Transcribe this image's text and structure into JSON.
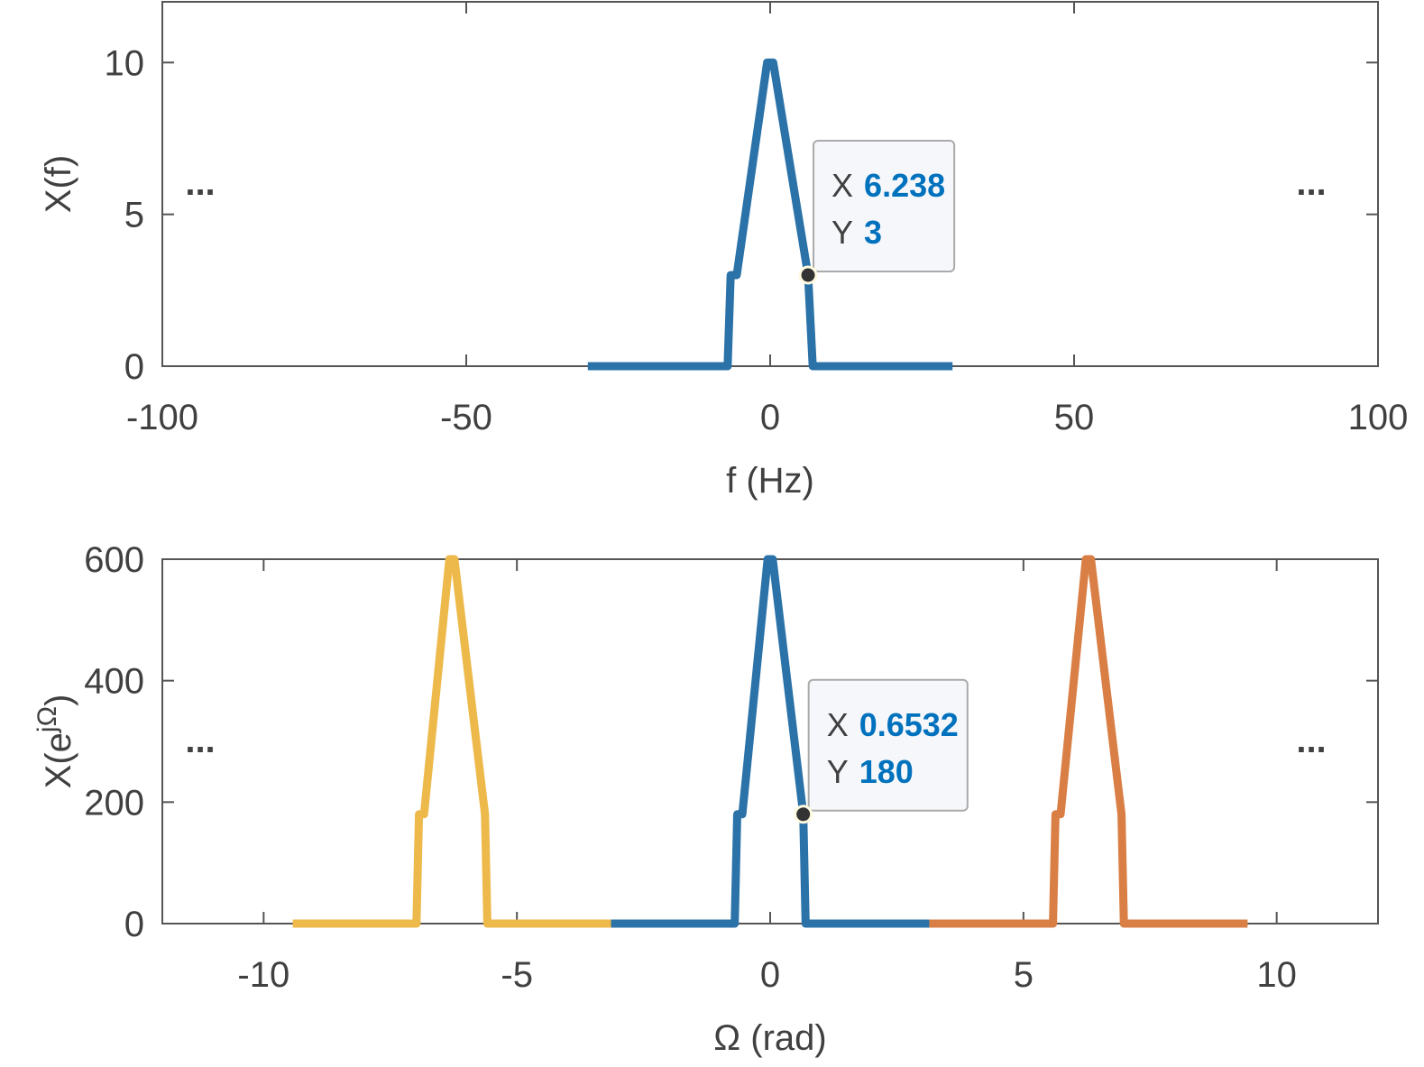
{
  "chart_data": [
    {
      "type": "line",
      "xlabel": "f (Hz)",
      "ylabel": "X(f)",
      "xlim": [
        -100,
        100
      ],
      "ylim": [
        0,
        12
      ],
      "xticks": [
        -100,
        -50,
        0,
        50,
        100
      ],
      "yticks": [
        0,
        5,
        10
      ],
      "series": [
        {
          "color": "#2a72a8",
          "x": [
            -30,
            -7,
            -6.5,
            -5.5,
            -0.5,
            0.5,
            6.238,
            7,
            30
          ],
          "values": [
            0,
            0,
            3,
            3,
            10,
            10,
            3,
            0,
            0
          ]
        }
      ],
      "datatip": {
        "x_label": "X",
        "x": 6.238,
        "y_label": "Y",
        "y": 3
      },
      "annotations": [
        "...",
        "..."
      ]
    },
    {
      "type": "line",
      "xlabel": "Ω (rad)",
      "ylabel_parts": [
        "X(e",
        "jΩ",
        ")"
      ],
      "xlim": [
        -12,
        12
      ],
      "ylim": [
        0,
        600
      ],
      "xticks": [
        -10,
        -5,
        0,
        5,
        10
      ],
      "yticks": [
        0,
        200,
        400,
        600
      ],
      "series": [
        {
          "color": "#edb94a",
          "x": [
            -9.4248,
            -6.983,
            -6.933,
            -6.833,
            -6.333,
            -6.233,
            -5.63,
            -5.583,
            -3.1416
          ],
          "values": [
            0,
            0,
            180,
            180,
            600,
            600,
            180,
            0,
            0
          ]
        },
        {
          "color": "#2a72a8",
          "x": [
            -3.1416,
            -0.7,
            -0.65,
            -0.55,
            -0.05,
            0.05,
            0.6532,
            0.7,
            3.1416
          ],
          "values": [
            0,
            0,
            180,
            180,
            600,
            600,
            180,
            0,
            0
          ]
        },
        {
          "color": "#d97f45",
          "x": [
            3.1416,
            5.583,
            5.633,
            5.733,
            6.233,
            6.333,
            6.936,
            6.983,
            9.4248
          ],
          "values": [
            0,
            0,
            180,
            180,
            600,
            600,
            180,
            0,
            0
          ]
        }
      ],
      "datatip": {
        "x_label": "X",
        "x": 0.6532,
        "y_label": "Y",
        "y": 180
      },
      "annotations": [
        "...",
        "..."
      ]
    }
  ]
}
